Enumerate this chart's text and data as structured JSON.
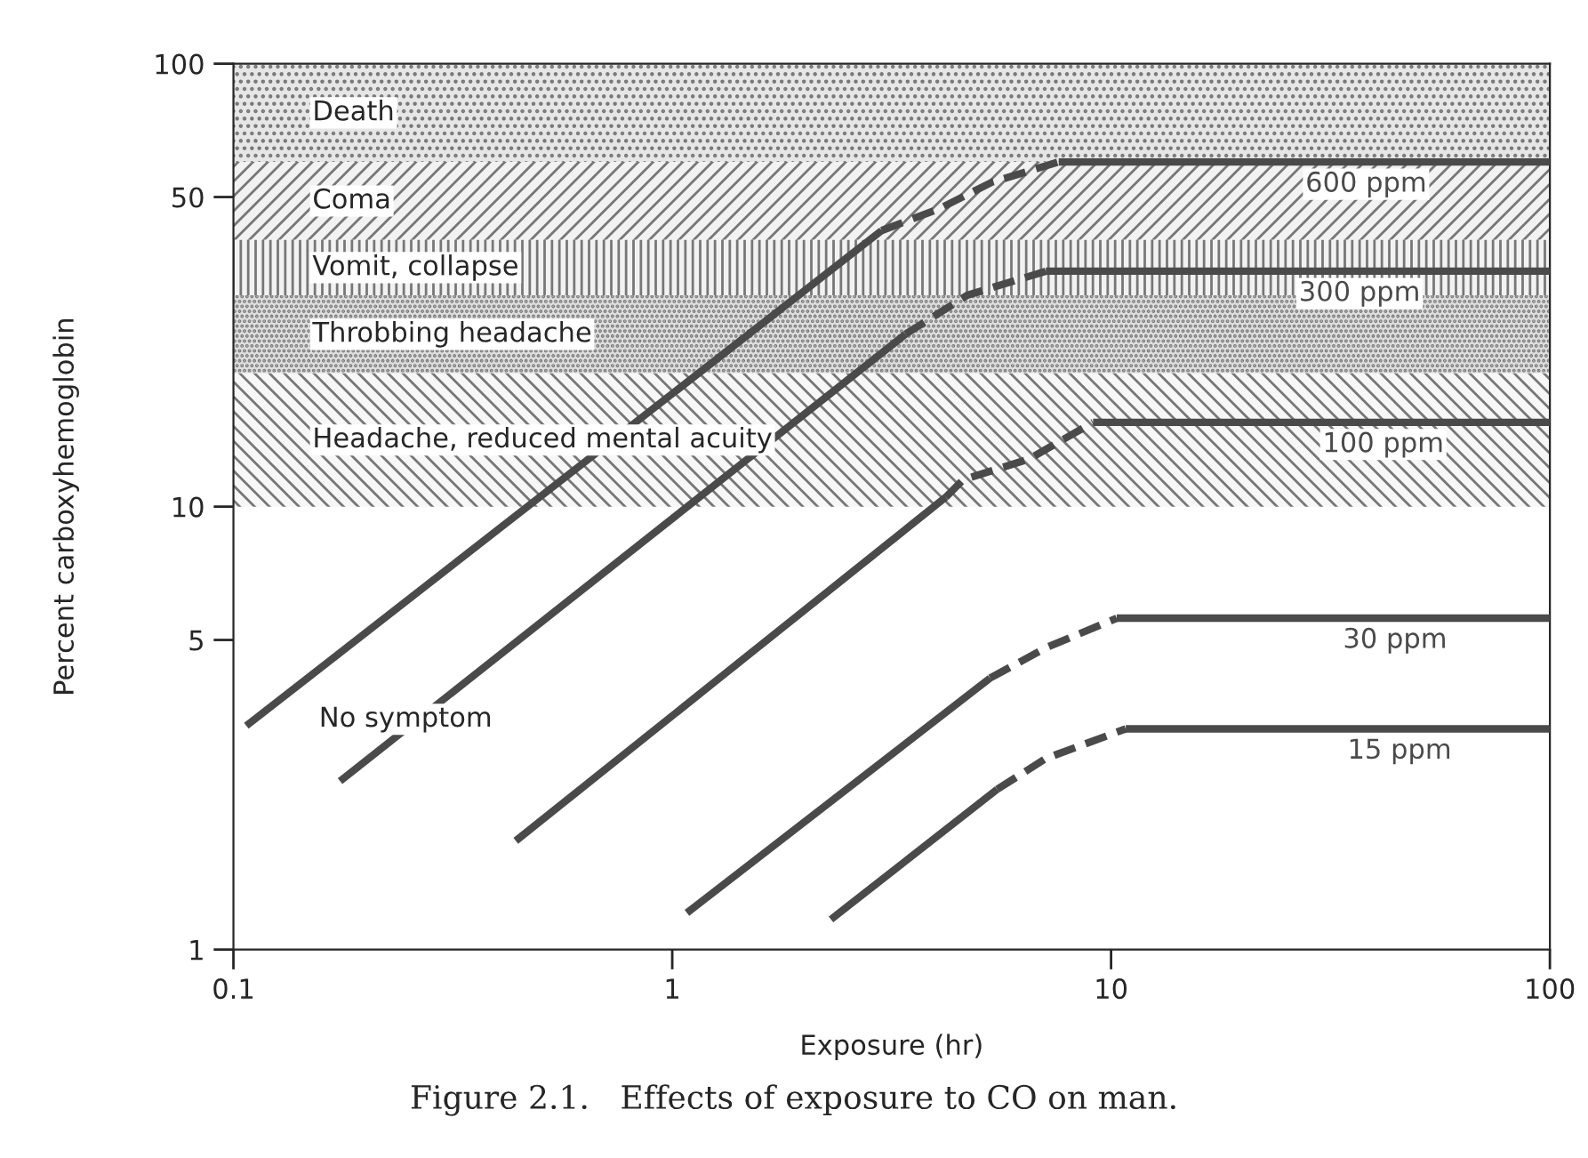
{
  "chart_data": {
    "type": "line",
    "xlabel": "Exposure (hr)",
    "ylabel": "Percent carboxyhemoglobin",
    "log": "xy",
    "xlim": [
      0.1,
      100
    ],
    "ylim": [
      1,
      100
    ],
    "xticks": [
      0.1,
      1,
      10,
      100
    ],
    "yticks": [
      1,
      5,
      10,
      50,
      100
    ],
    "series": [
      {
        "color": "#4a4a4a",
        "line_style": "solid",
        "x": [
          0.107,
          3.0
        ],
        "values": [
          3.2,
          42
        ]
      },
      {
        "color": "#4a4a4a",
        "line_style": "dashed",
        "x": [
          3.0,
          4.05,
          5.35,
          7.6
        ],
        "values": [
          42,
          47,
          54,
          60
        ]
      },
      {
        "name": "600 ppm",
        "color": "#4a4a4a",
        "line_style": "solid",
        "x": [
          7.6,
          100
        ],
        "values": [
          60,
          60
        ]
      },
      {
        "color": "#4a4a4a",
        "line_style": "solid",
        "x": [
          0.175,
          3.4
        ],
        "values": [
          2.4,
          24.5
        ]
      },
      {
        "color": "#4a4a4a",
        "line_style": "dashed",
        "x": [
          3.4,
          4.7,
          7.1
        ],
        "values": [
          24.5,
          30,
          34
        ]
      },
      {
        "name": "300 ppm",
        "color": "#4a4a4a",
        "line_style": "solid",
        "x": [
          7.1,
          100
        ],
        "values": [
          34,
          34
        ]
      },
      {
        "color": "#4a4a4a",
        "line_style": "solid",
        "x": [
          0.44,
          4.2
        ],
        "values": [
          1.76,
          10.5
        ]
      },
      {
        "color": "#4a4a4a",
        "line_style": "dashed",
        "x": [
          4.2,
          4.6,
          6.5,
          9.1
        ],
        "values": [
          10.5,
          11.5,
          12.8,
          15.5
        ]
      },
      {
        "name": "100 ppm",
        "color": "#4a4a4a",
        "line_style": "solid",
        "x": [
          9.1,
          100
        ],
        "values": [
          15.5,
          15.5
        ]
      },
      {
        "color": "#4a4a4a",
        "line_style": "solid",
        "x": [
          1.08,
          5.3
        ],
        "values": [
          1.21,
          4.1
        ]
      },
      {
        "color": "#4a4a4a",
        "line_style": "dashed",
        "x": [
          5.3,
          7.1,
          10.3
        ],
        "values": [
          4.1,
          4.8,
          5.6
        ]
      },
      {
        "name": "30 ppm",
        "color": "#4a4a4a",
        "line_style": "solid",
        "x": [
          10.3,
          100
        ],
        "values": [
          5.6,
          5.6
        ]
      },
      {
        "color": "#4a4a4a",
        "line_style": "solid",
        "x": [
          2.3,
          5.5
        ],
        "values": [
          1.17,
          2.3
        ]
      },
      {
        "color": "#4a4a4a",
        "line_style": "dashed",
        "x": [
          5.5,
          7.1,
          10.8
        ],
        "values": [
          2.3,
          2.7,
          3.15
        ]
      },
      {
        "name": "15 ppm",
        "color": "#4a4a4a",
        "line_style": "solid",
        "x": [
          10.8,
          100
        ],
        "values": [
          3.15,
          3.15
        ]
      }
    ],
    "bands": [
      {
        "axis": "y",
        "from": 60,
        "to": 100,
        "label": "Death",
        "color": "#e6e6e6"
      },
      {
        "axis": "y",
        "from": 40,
        "to": 60,
        "label": "Coma",
        "color": "#f2f2f2"
      },
      {
        "axis": "y",
        "from": 30,
        "to": 40,
        "label": "Vomit, collapse",
        "color": "#f2f2f2"
      },
      {
        "axis": "y",
        "from": 20,
        "to": 30,
        "label": "Throbbing headache",
        "color": "#dedede"
      },
      {
        "axis": "y",
        "from": 10,
        "to": 20,
        "label": "Headache, reduced mental acuity",
        "color": "#f7f7f7"
      }
    ],
    "annotations": [
      "No symptom",
      "Figure 2.1.   Effects of exposure to CO on man."
    ],
    "grid": false,
    "legend": false
  }
}
